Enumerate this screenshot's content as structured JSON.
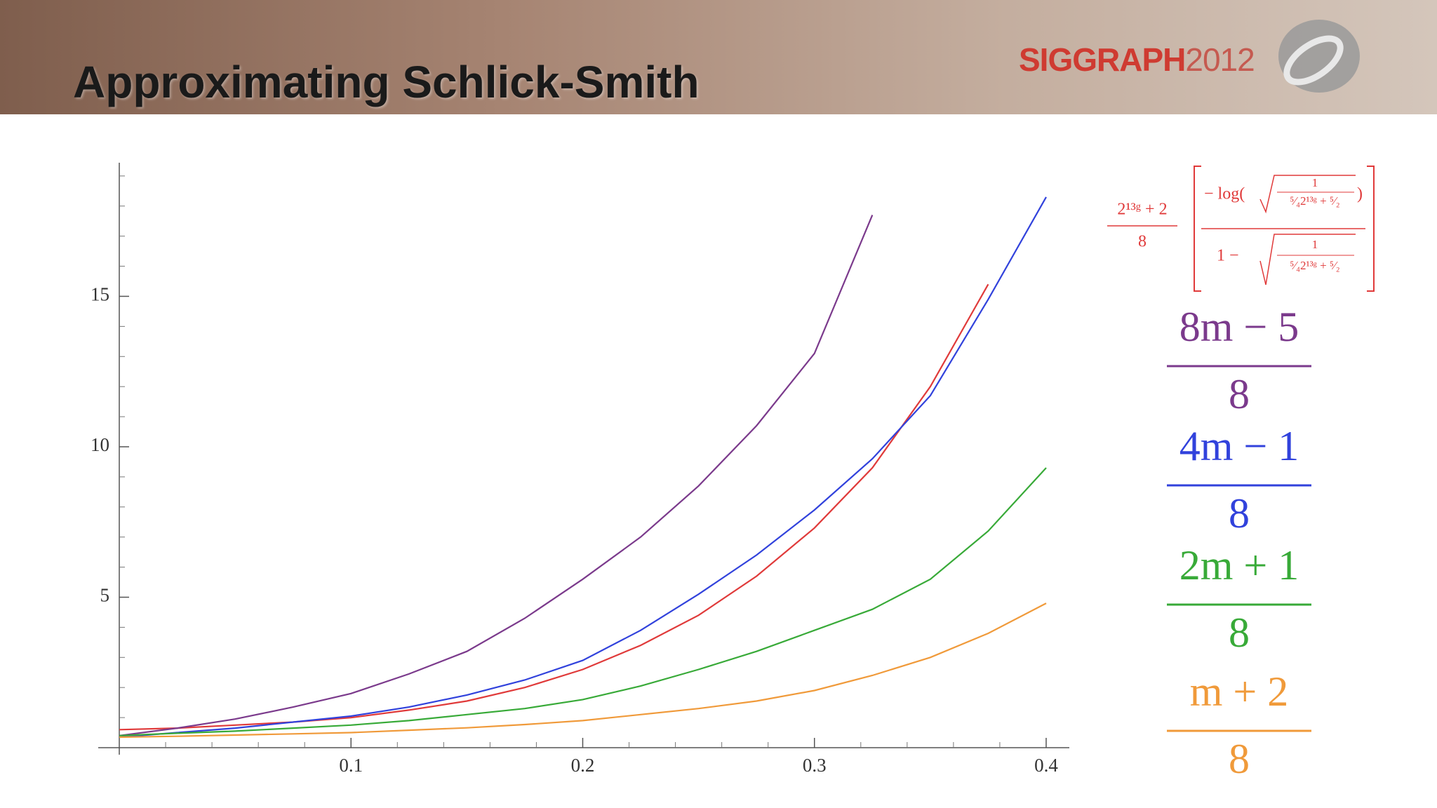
{
  "header": {
    "title": "Approximating Schlick-Smith",
    "logo": {
      "name": "SIGGRAPH",
      "year": "2012"
    }
  },
  "chart_data": {
    "type": "line",
    "x": [
      0,
      0.025,
      0.05,
      0.075,
      0.1,
      0.125,
      0.15,
      0.175,
      0.2,
      0.225,
      0.25,
      0.275,
      0.3,
      0.325,
      0.35,
      0.375,
      0.4
    ],
    "series": [
      {
        "name": {
          "numerator": "2¹³ᵍ + 2",
          "denominator": "8",
          "bracket_numerator": [
            "− log(",
            "1",
            "⁵⁄₄2¹³ᵍ + ⁵⁄₂",
            ")"
          ],
          "bracket_denominator": [
            "1 −",
            "1",
            "⁵⁄₄2¹³ᵍ + ⁵⁄₂"
          ]
        },
        "color": "#e03a3a",
        "values": [
          0.6,
          0.65,
          0.75,
          0.85,
          1.0,
          1.25,
          1.55,
          2.0,
          2.6,
          3.4,
          4.4,
          5.7,
          7.3,
          9.3,
          12.0,
          15.4,
          null
        ]
      },
      {
        "name": {
          "numerator": "8m − 5",
          "denominator": "8"
        },
        "color": "#7b3a8c",
        "values": [
          0.4,
          0.65,
          0.95,
          1.35,
          1.8,
          2.45,
          3.2,
          4.3,
          5.6,
          7.0,
          8.7,
          10.7,
          13.1,
          17.7,
          null,
          null,
          null
        ]
      },
      {
        "name": {
          "numerator": "4m − 1",
          "denominator": "8"
        },
        "color": "#3142dc",
        "values": [
          0.35,
          0.5,
          0.65,
          0.85,
          1.05,
          1.35,
          1.75,
          2.25,
          2.9,
          3.9,
          5.1,
          6.4,
          7.9,
          9.6,
          11.7,
          14.9,
          18.3
        ]
      },
      {
        "name": {
          "numerator": "2m + 1",
          "denominator": "8"
        },
        "color": "#38aa38",
        "values": [
          0.4,
          0.48,
          0.55,
          0.65,
          0.75,
          0.9,
          1.1,
          1.3,
          1.6,
          2.05,
          2.6,
          3.2,
          3.9,
          4.6,
          5.6,
          7.2,
          9.3
        ]
      },
      {
        "name": {
          "numerator": "m + 2",
          "denominator": "8"
        },
        "color": "#f09a3a",
        "values": [
          0.35,
          0.38,
          0.42,
          0.46,
          0.5,
          0.58,
          0.66,
          0.77,
          0.9,
          1.1,
          1.3,
          1.55,
          1.9,
          2.4,
          3.0,
          3.8,
          4.8
        ]
      }
    ],
    "xlim": [
      0,
      0.41
    ],
    "ylim": [
      0,
      19.3
    ],
    "xticks": [
      0.1,
      0.2,
      0.3,
      0.4
    ],
    "xticks_minor": [
      0.02,
      0.04,
      0.06,
      0.08,
      0.12,
      0.14,
      0.16,
      0.18,
      0.22,
      0.24,
      0.26,
      0.28,
      0.32,
      0.34,
      0.36,
      0.38
    ],
    "yticks": [
      5,
      10,
      15
    ],
    "yticks_minor": [
      1,
      2,
      3,
      4,
      6,
      7,
      8,
      9,
      11,
      12,
      13,
      14,
      16,
      17,
      18,
      19
    ]
  }
}
